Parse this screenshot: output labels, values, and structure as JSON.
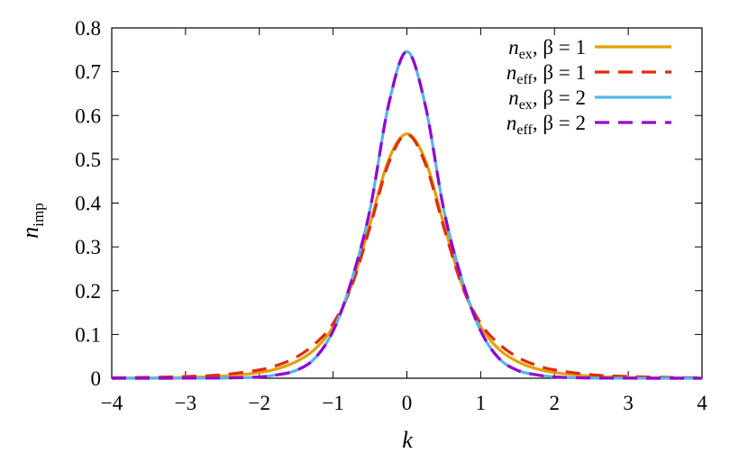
{
  "chart_data": {
    "type": "line",
    "xlabel": "k",
    "ylabel": {
      "main": "n",
      "sub": "imp"
    },
    "xlim": [
      -4,
      4
    ],
    "ylim": [
      0,
      0.8
    ],
    "xticks": [
      "−4",
      "−3",
      "−2",
      "−1",
      "0",
      "1",
      "2",
      "3",
      "4"
    ],
    "yticks": [
      "0",
      "0.1",
      "0.2",
      "0.3",
      "0.4",
      "0.5",
      "0.6",
      "0.7",
      "0.8"
    ],
    "grid": false,
    "legend_position": "top-right",
    "x": [
      -4,
      -3.5,
      -3,
      -2.5,
      -2,
      -1.75,
      -1.5,
      -1.25,
      -1,
      -0.75,
      -0.5,
      -0.25,
      0,
      0.25,
      0.5,
      0.75,
      1,
      1.25,
      1.5,
      1.75,
      2,
      2.5,
      3,
      3.5,
      4
    ],
    "series": [
      {
        "name": {
          "var": "n",
          "sub": "ex",
          "param": "β = 1"
        },
        "color": "#e69f00",
        "dash": "solid",
        "values": [
          0.0003,
          0.0007,
          0.0018,
          0.0048,
          0.013,
          0.022,
          0.038,
          0.066,
          0.118,
          0.212,
          0.352,
          0.498,
          0.558,
          0.498,
          0.352,
          0.212,
          0.118,
          0.066,
          0.038,
          0.022,
          0.013,
          0.0048,
          0.0018,
          0.0007,
          0.0003
        ]
      },
      {
        "name": {
          "var": "n",
          "sub": "eff",
          "param": "β = 1"
        },
        "color": "#e02a10",
        "dash": "dashed",
        "values": [
          0.001,
          0.002,
          0.004,
          0.008,
          0.019,
          0.03,
          0.048,
          0.078,
          0.125,
          0.21,
          0.345,
          0.49,
          0.557,
          0.49,
          0.345,
          0.21,
          0.125,
          0.078,
          0.048,
          0.03,
          0.019,
          0.008,
          0.004,
          0.002,
          0.001
        ]
      },
      {
        "name": {
          "var": "n",
          "sub": "ex",
          "param": "β = 2"
        },
        "color": "#56b4e9",
        "dash": "solid",
        "values": [
          0.0,
          0.0,
          0.0001,
          0.0005,
          0.003,
          0.008,
          0.018,
          0.045,
          0.108,
          0.223,
          0.385,
          0.623,
          0.746,
          0.623,
          0.385,
          0.223,
          0.108,
          0.045,
          0.018,
          0.008,
          0.003,
          0.0005,
          0.0001,
          0.0,
          0.0
        ]
      },
      {
        "name": {
          "var": "n",
          "sub": "eff",
          "param": "β = 2"
        },
        "color": "#9400d3",
        "dash": "dashed",
        "values": [
          0.0,
          0.0,
          0.0001,
          0.0005,
          0.003,
          0.008,
          0.018,
          0.045,
          0.108,
          0.223,
          0.385,
          0.623,
          0.746,
          0.623,
          0.385,
          0.223,
          0.108,
          0.045,
          0.018,
          0.008,
          0.003,
          0.0005,
          0.0001,
          0.0,
          0.0
        ]
      }
    ]
  }
}
